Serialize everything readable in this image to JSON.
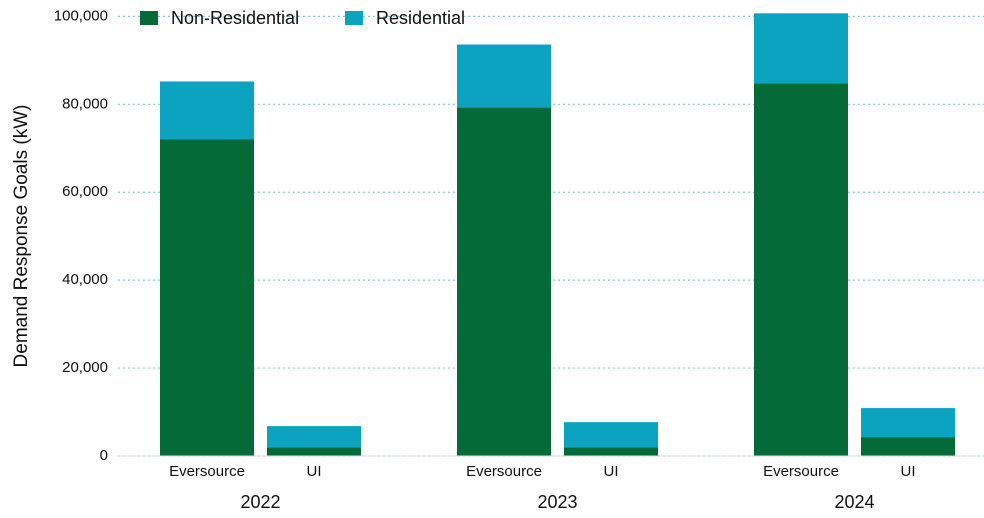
{
  "chart_data": {
    "type": "stacked-bar",
    "y_label": "Demand Response Goals (kW)",
    "groups": [
      "2022",
      "2023",
      "2024"
    ],
    "categories": [
      "Eversource",
      "UI",
      "Eversource",
      "UI",
      "Eversource",
      "UI"
    ],
    "series": [
      {
        "name": "Non-Residential",
        "color": "#046a38",
        "values": [
          72000,
          2000,
          79300,
          2000,
          84800,
          4300
        ]
      },
      {
        "name": "Residential",
        "color": "#0ca3c0",
        "values": [
          13200,
          4800,
          14300,
          5700,
          15900,
          6600
        ]
      }
    ],
    "ylim": [
      0,
      101000
    ],
    "yticks": [
      0,
      {
        "value": 20000,
        "label": "20,000"
      },
      {
        "value": 40000,
        "label": "40,000"
      },
      {
        "value": 60000,
        "label": "60,000"
      },
      {
        "value": 80000,
        "label": "80,000"
      },
      {
        "value": 100000,
        "label": "100,000"
      }
    ],
    "grid": true,
    "legend": "top-left"
  }
}
